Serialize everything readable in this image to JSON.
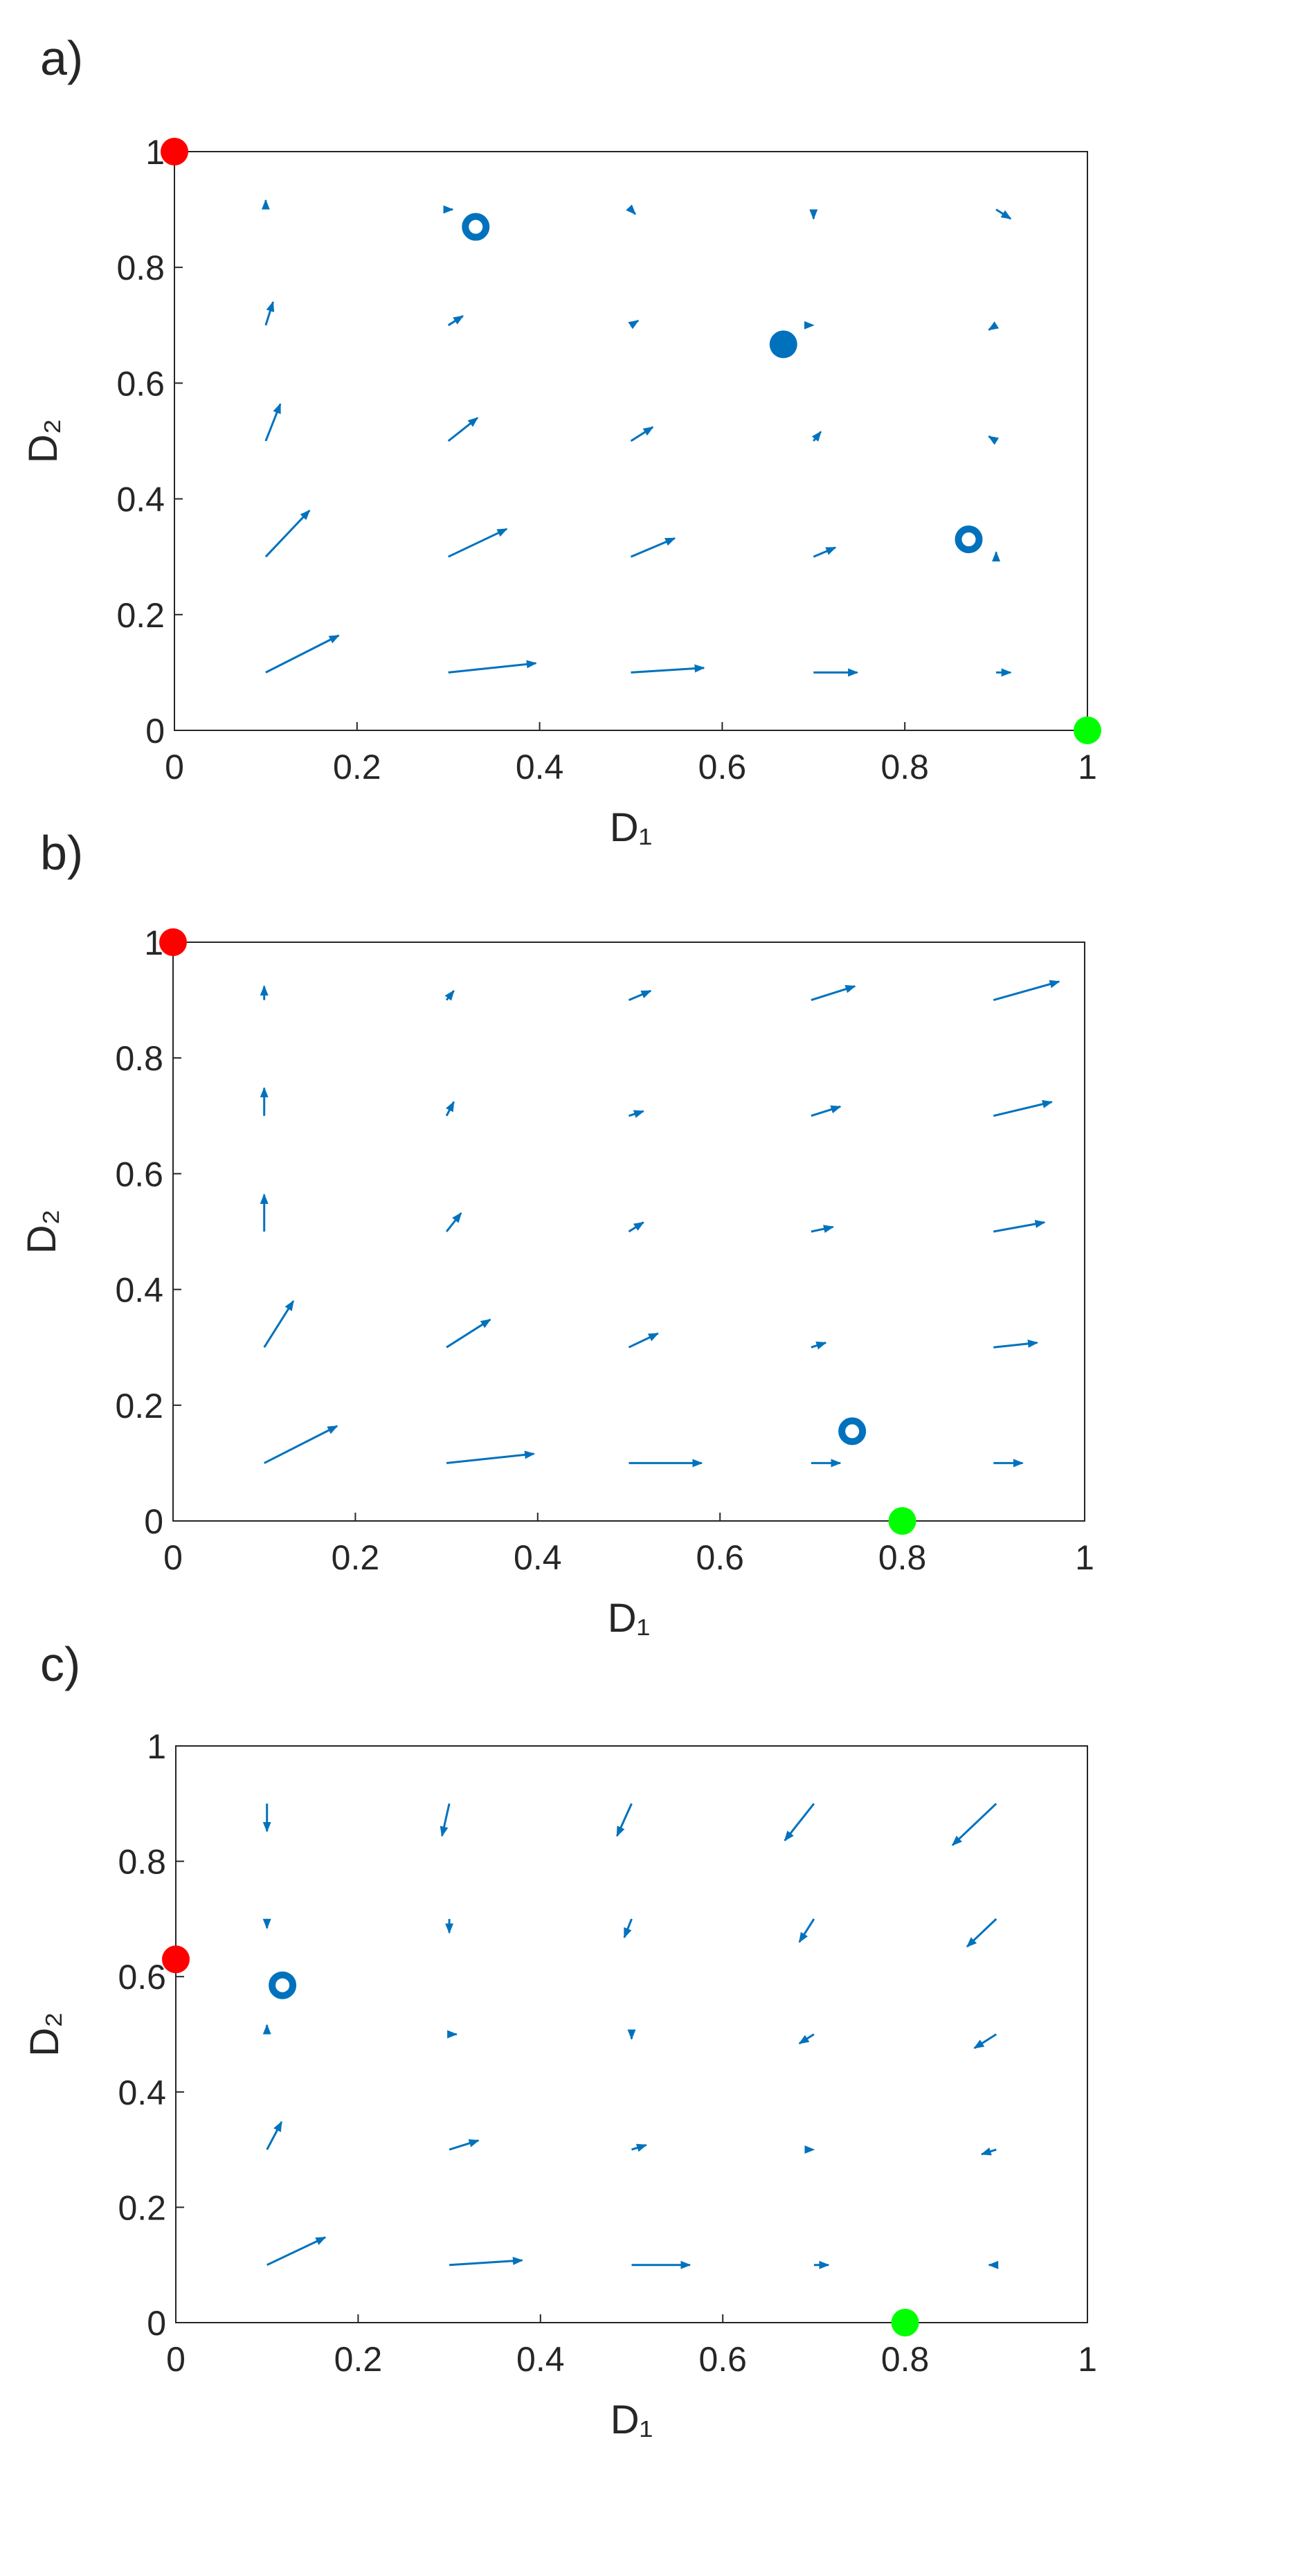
{
  "chart_data": [
    {
      "type": "quiver",
      "panel_label": "a)",
      "xlabel": "D₁",
      "ylabel": "D₂",
      "xlim": [
        0,
        1
      ],
      "ylim": [
        0,
        1
      ],
      "xticks": [
        0,
        0.2,
        0.4,
        0.6,
        0.8,
        1
      ],
      "yticks": [
        0,
        0.2,
        0.4,
        0.6,
        0.8,
        1
      ],
      "arrow_color": "#0072bd",
      "grid_x": [
        0.1,
        0.3,
        0.5,
        0.7,
        0.9
      ],
      "grid_y": [
        0.1,
        0.3,
        0.5,
        0.7,
        0.9
      ],
      "u": [
        [
          0.05,
          0.06,
          0.05,
          0.03,
          0.01
        ],
        [
          0.03,
          0.04,
          0.03,
          0.015,
          0
        ],
        [
          0.01,
          0.02,
          0.015,
          0.005,
          -0.005
        ],
        [
          0.005,
          0.01,
          0.005,
          0,
          -0.005
        ],
        [
          0,
          0.003,
          0.003,
          0,
          0.01
        ]
      ],
      "v": [
        [
          0.04,
          0.01,
          0.005,
          0,
          0
        ],
        [
          0.05,
          0.03,
          0.02,
          0.01,
          0.005
        ],
        [
          0.04,
          0.025,
          0.015,
          0.01,
          0.005
        ],
        [
          0.025,
          0.01,
          0.005,
          0,
          -0.005
        ],
        [
          0.01,
          0,
          -0.005,
          -0.01,
          -0.01
        ]
      ],
      "markers": [
        {
          "x": 0,
          "y": 1,
          "color": "#ff0000",
          "style": "filled"
        },
        {
          "x": 1,
          "y": 0,
          "color": "#00ff00",
          "style": "filled"
        },
        {
          "x": 0.667,
          "y": 0.667,
          "color": "#0072bd",
          "style": "filled"
        },
        {
          "x": 0.33,
          "y": 0.87,
          "color": "#0072bd",
          "style": "open"
        },
        {
          "x": 0.87,
          "y": 0.33,
          "color": "#0072bd",
          "style": "open"
        }
      ]
    },
    {
      "type": "quiver",
      "panel_label": "b)",
      "xlabel": "D₁",
      "ylabel": "D₂",
      "xlim": [
        0,
        1
      ],
      "ylim": [
        0,
        1
      ],
      "xticks": [
        0,
        0.2,
        0.4,
        0.6,
        0.8,
        1
      ],
      "yticks": [
        0,
        0.2,
        0.4,
        0.6,
        0.8,
        1
      ],
      "arrow_color": "#0072bd",
      "grid_x": [
        0.1,
        0.3,
        0.5,
        0.7,
        0.9
      ],
      "grid_y": [
        0.1,
        0.3,
        0.5,
        0.7,
        0.9
      ],
      "u": [
        [
          0.05,
          0.06,
          0.05,
          0.02,
          0.02
        ],
        [
          0.02,
          0.03,
          0.02,
          0.01,
          0.03
        ],
        [
          0,
          0.01,
          0.01,
          0.015,
          0.035
        ],
        [
          0,
          0.005,
          0.01,
          0.02,
          0.04
        ],
        [
          0,
          0.005,
          0.015,
          0.03,
          0.045
        ]
      ],
      "v": [
        [
          0.04,
          0.01,
          0,
          0,
          0
        ],
        [
          0.05,
          0.03,
          0.015,
          0.005,
          0.005
        ],
        [
          0.04,
          0.02,
          0.01,
          0.005,
          0.01
        ],
        [
          0.03,
          0.015,
          0.005,
          0.01,
          0.015
        ],
        [
          0.015,
          0.01,
          0.01,
          0.015,
          0.02
        ]
      ],
      "markers": [
        {
          "x": 0,
          "y": 1,
          "color": "#ff0000",
          "style": "filled"
        },
        {
          "x": 0.8,
          "y": 0,
          "color": "#00ff00",
          "style": "filled"
        },
        {
          "x": 0.745,
          "y": 0.155,
          "color": "#0072bd",
          "style": "open"
        }
      ]
    },
    {
      "type": "quiver",
      "panel_label": "c)",
      "xlabel": "D₁",
      "ylabel": "D₂",
      "xlim": [
        0,
        1
      ],
      "ylim": [
        0,
        1
      ],
      "xticks": [
        0,
        0.2,
        0.4,
        0.6,
        0.8,
        1
      ],
      "yticks": [
        0,
        0.2,
        0.4,
        0.6,
        0.8,
        1
      ],
      "arrow_color": "#0072bd",
      "grid_x": [
        0.1,
        0.3,
        0.5,
        0.7,
        0.9
      ],
      "grid_y": [
        0.1,
        0.3,
        0.5,
        0.7,
        0.9
      ],
      "u": [
        [
          0.04,
          0.05,
          0.04,
          0.01,
          -0.005
        ],
        [
          0.01,
          0.02,
          0.01,
          0,
          -0.01
        ],
        [
          0,
          0.005,
          0,
          -0.01,
          -0.015
        ],
        [
          0,
          0,
          -0.005,
          -0.01,
          -0.02
        ],
        [
          0,
          -0.005,
          -0.01,
          -0.02,
          -0.03
        ]
      ],
      "v": [
        [
          0.03,
          0.005,
          0,
          0,
          0
        ],
        [
          0.03,
          0.01,
          0.005,
          0,
          -0.005
        ],
        [
          0.01,
          0,
          -0.005,
          -0.01,
          -0.015
        ],
        [
          -0.01,
          -0.015,
          -0.02,
          -0.025,
          -0.03
        ],
        [
          -0.03,
          -0.035,
          -0.035,
          -0.04,
          -0.045
        ]
      ],
      "markers": [
        {
          "x": 0,
          "y": 0.63,
          "color": "#ff0000",
          "style": "filled"
        },
        {
          "x": 0.8,
          "y": 0,
          "color": "#00ff00",
          "style": "filled"
        },
        {
          "x": 0.117,
          "y": 0.585,
          "color": "#0072bd",
          "style": "open"
        }
      ]
    }
  ]
}
